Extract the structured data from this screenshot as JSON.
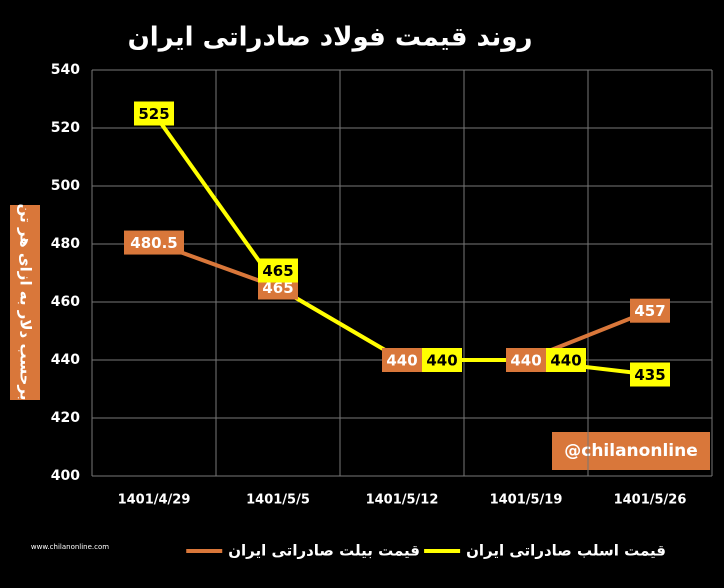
{
  "chart_data": {
    "type": "line",
    "title": "روند قیمت فولاد صادراتی ایران",
    "y_label": "برحسب دلار به ازای هر تن",
    "watermark": "@chilanonline",
    "logo_text": "www.chilanonline.com",
    "categories": [
      "1401/4/29",
      "1401/5/5",
      "1401/5/12",
      "1401/5/19",
      "1401/5/26"
    ],
    "series": [
      {
        "name": "قیمت بیلت صادراتی ایران",
        "color": "#d9773a",
        "label_text_color": "#ffffff",
        "values": [
          480.5,
          465,
          440,
          440,
          457
        ]
      },
      {
        "name": "قیمت اسلب صادراتی ایران",
        "color": "#ffff00",
        "label_text_color": "#000000",
        "values": [
          525,
          465,
          440,
          440,
          435
        ]
      }
    ],
    "ylim": [
      400,
      540
    ],
    "yticks": [
      400,
      420,
      440,
      460,
      480,
      500,
      520,
      540
    ],
    "grid": true
  }
}
